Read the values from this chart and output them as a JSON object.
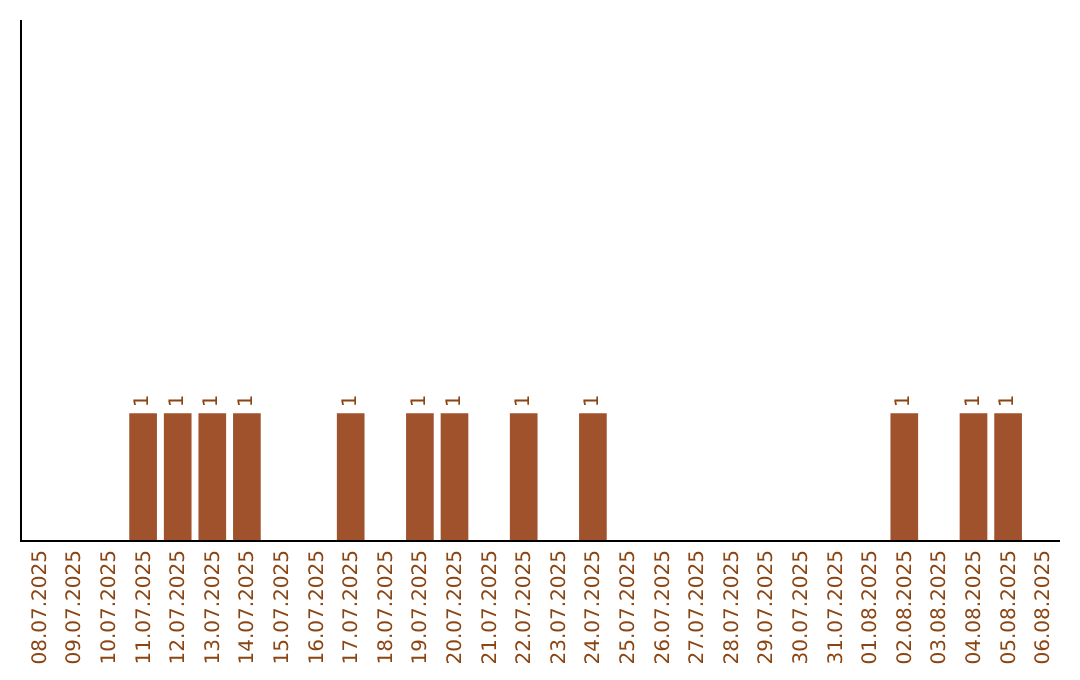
{
  "chart_data": {
    "type": "bar",
    "categories": [
      "08.07.2025",
      "09.07.2025",
      "10.07.2025",
      "11.07.2025",
      "12.07.2025",
      "13.07.2025",
      "14.07.2025",
      "15.07.2025",
      "16.07.2025",
      "17.07.2025",
      "18.07.2025",
      "19.07.2025",
      "20.07.2025",
      "21.07.2025",
      "22.07.2025",
      "23.07.2025",
      "24.07.2025",
      "25.07.2025",
      "26.07.2025",
      "27.07.2025",
      "28.07.2025",
      "29.07.2025",
      "30.07.2025",
      "31.07.2025",
      "01.08.2025",
      "02.08.2025",
      "03.08.2025",
      "04.08.2025",
      "05.08.2025",
      "06.08.2025"
    ],
    "values": [
      0,
      0,
      0,
      1,
      1,
      1,
      1,
      0,
      0,
      1,
      0,
      1,
      1,
      0,
      1,
      0,
      1,
      0,
      0,
      0,
      0,
      0,
      0,
      0,
      0,
      1,
      0,
      1,
      1,
      0
    ],
    "value_labels": [
      null,
      null,
      null,
      "1",
      "1",
      "1",
      "1",
      null,
      null,
      "1",
      null,
      "1",
      "1",
      null,
      "1",
      null,
      "1",
      null,
      null,
      null,
      null,
      null,
      null,
      null,
      null,
      "1",
      null,
      "1",
      "1",
      null
    ],
    "color": "#a0522d",
    "ylim": [
      0,
      4.1
    ],
    "tick_labels": "x",
    "grid": false,
    "legend": false
  }
}
